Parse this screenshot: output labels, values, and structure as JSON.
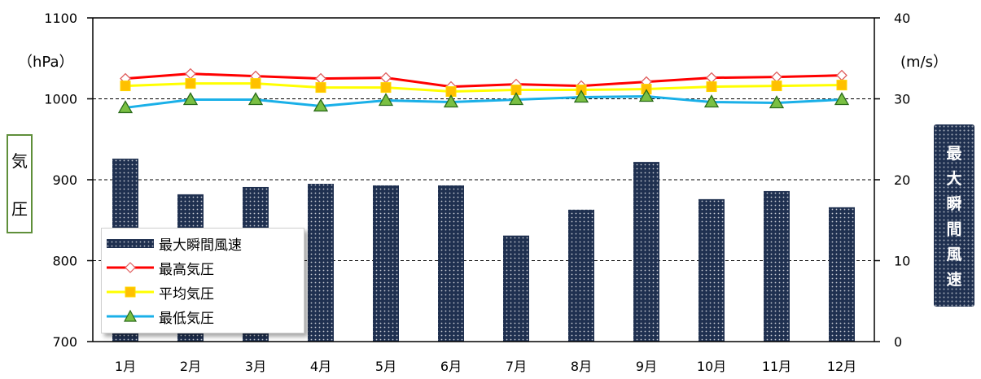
{
  "chart_data": {
    "type": "bar+line",
    "categories": [
      "1月",
      "2月",
      "3月",
      "4月",
      "5月",
      "6月",
      "7月",
      "8月",
      "9月",
      "10月",
      "11月",
      "12月"
    ],
    "series": [
      {
        "name": "最大瞬間風速",
        "type": "bar",
        "axis": "right",
        "values": [
          22.6,
          18.2,
          19.1,
          19.5,
          19.3,
          19.3,
          13.1,
          16.3,
          22.2,
          17.6,
          18.6,
          16.6
        ],
        "color": "#1f3050"
      },
      {
        "name": "最高気圧",
        "type": "line",
        "axis": "left",
        "values": [
          1025,
          1031,
          1028,
          1025,
          1026,
          1015,
          1018,
          1016,
          1021,
          1026,
          1027,
          1029
        ],
        "color": "#ff0000"
      },
      {
        "name": "平均気圧",
        "type": "line",
        "axis": "left",
        "values": [
          1016,
          1019,
          1019,
          1014,
          1014,
          1009,
          1011,
          1011,
          1012,
          1015,
          1016,
          1017
        ],
        "color": "#ffff00"
      },
      {
        "name": "最低気圧",
        "type": "line",
        "axis": "left",
        "values": [
          989,
          999,
          999,
          991,
          998,
          996,
          999,
          1002,
          1003,
          996,
          995,
          999
        ],
        "color": "#1ab0e8"
      }
    ],
    "y_left": {
      "label": "気圧",
      "unit": "（hPa）",
      "ylim": [
        700,
        1100
      ],
      "ticks": [
        "700",
        "800",
        "900",
        "1000",
        "1100"
      ]
    },
    "y_right": {
      "label": "最大瞬間風速",
      "unit": "(m/s）",
      "ylim": [
        0,
        40
      ],
      "ticks": [
        "0",
        "10",
        "20",
        "30",
        "40"
      ]
    },
    "grid": "dashed horizontal at 800, 900, 1000",
    "legend_position": "bottom-left"
  },
  "texts": {
    "y_left_chars": [
      "気",
      "圧"
    ],
    "y_right_chars": [
      "最",
      "大",
      "瞬",
      "間",
      "風",
      "速"
    ]
  }
}
